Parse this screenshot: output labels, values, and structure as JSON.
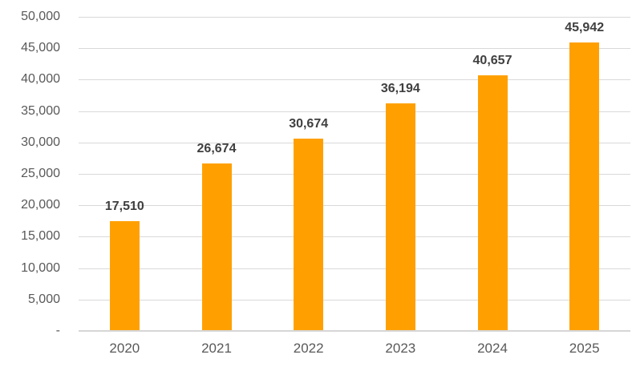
{
  "chart_data": {
    "type": "bar",
    "title": "",
    "xlabel": "",
    "ylabel": "",
    "categories": [
      "2020",
      "2021",
      "2022",
      "2023",
      "2024",
      "2025"
    ],
    "values": [
      17510,
      26674,
      30674,
      36194,
      40657,
      45942
    ],
    "data_labels": [
      "17,510",
      "26,674",
      "30,674",
      "36,194",
      "40,657",
      "45,942"
    ],
    "ylim": [
      0,
      50000
    ],
    "y_axis": {
      "ticks": [
        {
          "value": 0,
          "label": "-"
        },
        {
          "value": 5000,
          "label": "5,000"
        },
        {
          "value": 10000,
          "label": "10,000"
        },
        {
          "value": 15000,
          "label": "15,000"
        },
        {
          "value": 20000,
          "label": "20,000"
        },
        {
          "value": 25000,
          "label": "25,000"
        },
        {
          "value": 30000,
          "label": "30,000"
        },
        {
          "value": 35000,
          "label": "35,000"
        },
        {
          "value": 40000,
          "label": "40,000"
        },
        {
          "value": 45000,
          "label": "45,000"
        },
        {
          "value": 50000,
          "label": "50,000"
        }
      ]
    },
    "grid": true,
    "legend_position": "none",
    "colors": {
      "bar": "#FFA000",
      "gridline": "#D9D9D9",
      "axis_line": "#D6D6D6",
      "tick_label": "#595959",
      "data_label": "#3F3F3F",
      "background": "#FFFFFF"
    }
  }
}
